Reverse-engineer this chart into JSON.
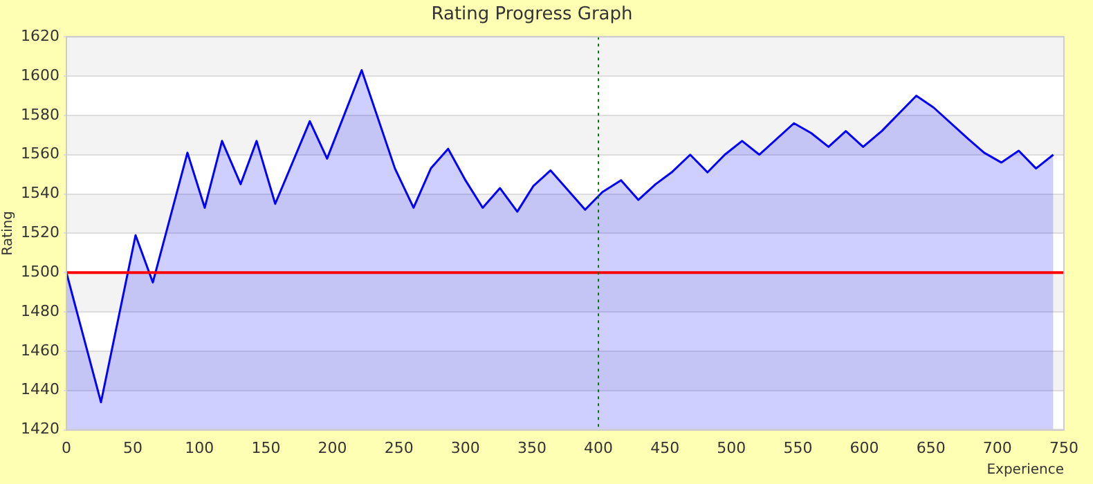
{
  "chart_data": {
    "type": "area",
    "title": "Rating Progress Graph",
    "xlabel": "Experience",
    "ylabel": "Rating",
    "series": [
      {
        "color": "#0000ff",
        "x": [
          0,
          26,
          52,
          65,
          91,
          104,
          117,
          131,
          143,
          157,
          183,
          196,
          222,
          247,
          261,
          274,
          287,
          300,
          313,
          326,
          339,
          351,
          364,
          390,
          403,
          417,
          430,
          443,
          455,
          469,
          482,
          495,
          508,
          521,
          547,
          560,
          573,
          586,
          599,
          613,
          639,
          652,
          678,
          690,
          703,
          716,
          729,
          742
        ],
        "values": [
          1500,
          1434,
          1519,
          1495,
          1561,
          1533,
          1567,
          1545,
          1567,
          1535,
          1577,
          1558,
          1603,
          1553,
          1533,
          1553,
          1563,
          1547,
          1533,
          1543,
          1531,
          1544,
          1552,
          1532,
          1541,
          1547,
          1537,
          1545,
          1551,
          1560,
          1551,
          1560,
          1567,
          1560,
          1576,
          1571,
          1564,
          1572,
          1564,
          1572,
          1590,
          1584,
          1568,
          1561,
          1556,
          1562,
          1553,
          1560
        ]
      }
    ],
    "xlim": [
      0,
      750
    ],
    "xticks": [
      0,
      50,
      100,
      150,
      200,
      250,
      300,
      350,
      400,
      450,
      500,
      550,
      600,
      650,
      700,
      750
    ],
    "ylim": [
      1420,
      1620
    ],
    "yticks": [
      1420,
      1440,
      1460,
      1480,
      1500,
      1520,
      1540,
      1560,
      1580,
      1600,
      1620
    ],
    "grid": "y",
    "legend": false,
    "ref_lines": [
      {
        "axis": "y",
        "value": 1500,
        "color": "#ff0000",
        "line_style": "solid"
      },
      {
        "axis": "x",
        "value": 400,
        "color": "#007700",
        "line_style": "dotted"
      }
    ]
  }
}
